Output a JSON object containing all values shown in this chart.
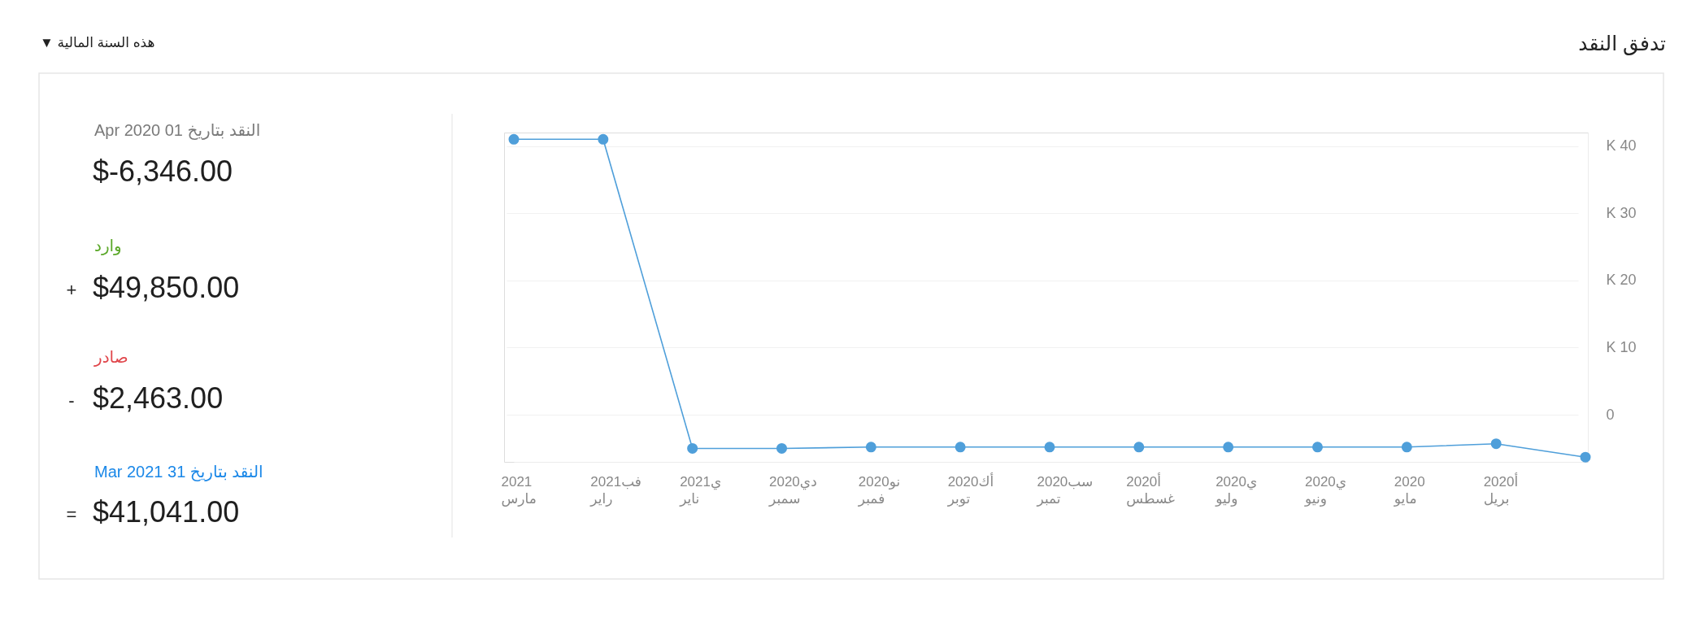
{
  "chart_data": [
    {
      "type": "line",
      "title": "تدفق النقد",
      "annotations": [
        "هذه السنة المالية ▼"
      ],
      "categories": [
        "2021\nمارس",
        "فب2021\nراير",
        "ي2021\nناير",
        "دي2020\nسمبر",
        "نو2020\nفمبر",
        "أك2020\nتوبر",
        "سب2020\nتمبر",
        "أ2020\nغسطس",
        "ي2020\nوليو",
        "ي2020\nونيو",
        "2020\nمايو",
        "أ2020\nبريل",
        null
      ],
      "series": [
        {
          "color": "#4f9fda",
          "values": [
            41000,
            41000,
            -5000,
            -5000,
            -4800,
            -4800,
            -4800,
            -4800,
            -4800,
            -4800,
            -4800,
            -4300,
            -6300
          ]
        }
      ],
      "ylim": [
        -7000,
        42000
      ],
      "yticks": [
        0,
        {
          "value": 10000,
          "label": "10 K"
        },
        {
          "value": 20000,
          "label": "20 K"
        },
        {
          "value": 30000,
          "label": "30 K"
        },
        {
          "value": 40000,
          "label": "40 K"
        }
      ],
      "grid": "y",
      "marker": "circle"
    },
    {
      "type": "other",
      "annotations": [
        "النقد بتاريخ 01 Apr 2020",
        "$-6,346.00",
        "وارد",
        "+",
        "$49,850.00",
        "صادر",
        "-",
        "$2,463.00",
        "النقد بتاريخ 31 Mar 2021",
        "=",
        "$41,041.00"
      ],
      "colors": [
        "#7a7a7a",
        "#1f1f1f",
        "#5ba829",
        "#1f1f1f",
        "#1f1f1f",
        "#e0464b",
        "#1f1f1f",
        "#1f1f1f",
        "#1b88e8",
        "#1f1f1f",
        "#1f1f1f"
      ]
    }
  ]
}
